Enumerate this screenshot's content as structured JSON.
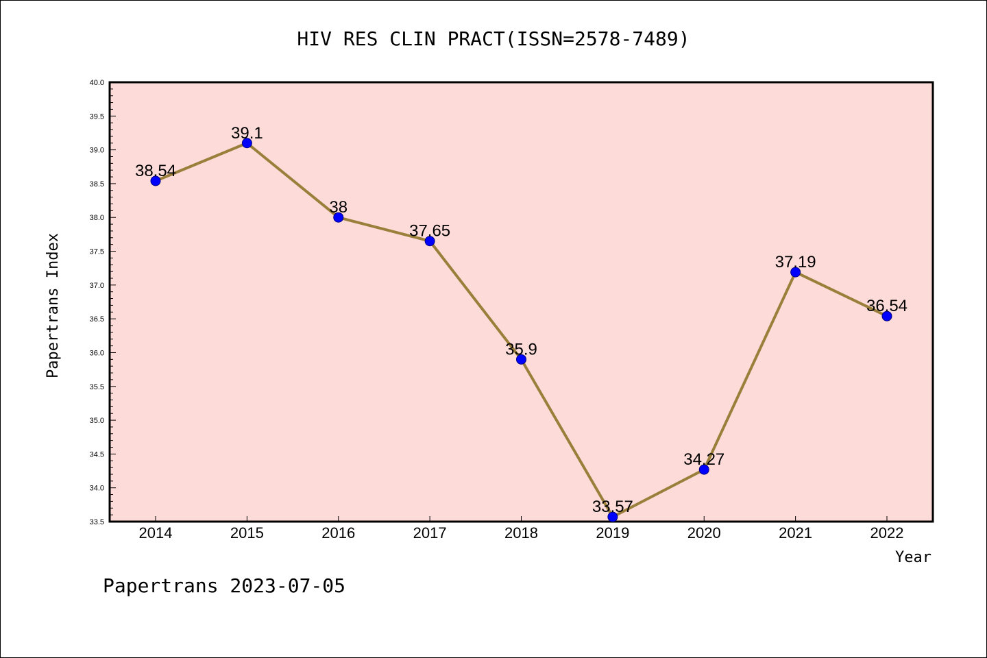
{
  "header": {
    "title": "HIV RES CLIN PRACT(ISSN=2578-7489)"
  },
  "footer": {
    "text": "Papertrans 2023-07-05"
  },
  "colors": {
    "plot_background": "#fddbd9",
    "line": "#9a7f3b",
    "marker_fill": "#0000ff",
    "marker_stroke": "#000080"
  },
  "chart_data": {
    "type": "line",
    "title": "HIV RES CLIN PRACT(ISSN=2578-7489)",
    "xlabel": "Year",
    "ylabel": "Papertrans Index",
    "x": [
      "2014",
      "2015",
      "2016",
      "2017",
      "2018",
      "2019",
      "2020",
      "2021",
      "2022"
    ],
    "series": [
      {
        "values": [
          38.54,
          39.1,
          38,
          37.65,
          35.9,
          33.57,
          34.27,
          37.19,
          36.54
        ]
      }
    ],
    "data_labels": [
      "38.54",
      "39.1",
      "38",
      "37.65",
      "35.9",
      "33.57",
      "34.27",
      "37.19",
      "36.54"
    ],
    "ylim": [
      33.5,
      40.0
    ],
    "yticks": [
      "33.5",
      "34.0",
      "34.5",
      "35.0",
      "35.5",
      "36.0",
      "36.5",
      "37.0",
      "37.5",
      "38.0",
      "38.5",
      "39.0",
      "39.5",
      "40.0"
    ],
    "grid": false,
    "legend": "none"
  }
}
